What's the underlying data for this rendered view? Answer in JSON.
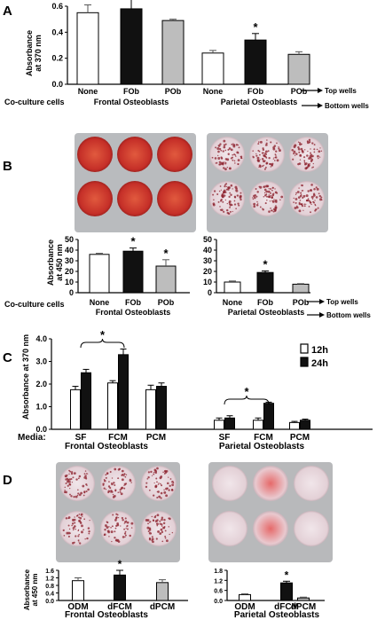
{
  "colors": {
    "white_bar": "#ffffff",
    "black_bar": "#111111",
    "gray_bar": "#bdbdbd",
    "plate_bg": "#b8b9bb",
    "stain_dense": "#c9302a",
    "stain_light": "#eadbe0",
    "dot": "#8b1d2a"
  },
  "panels": {
    "A": {
      "letter": "A",
      "ylabel_line1": "Absorbance",
      "ylabel_line2": "at 370 nm",
      "row_label": "Co-culture cells",
      "group1": "Frontal Osteoblasts",
      "group2": "Parietal Osteoblasts",
      "arrow_top": "Top wells",
      "arrow_bottom": "Bottom wells"
    },
    "B": {
      "letter": "B",
      "ylabel_line1": "Absorbance",
      "ylabel_line2": "at 450 nm",
      "row_label": "Co-culture cells",
      "group1": "Frontal Osteoblasts",
      "group2": "Parietal Osteoblasts",
      "arrow_top": "Top wells",
      "arrow_bottom": "Bottom wells"
    },
    "C": {
      "letter": "C",
      "ylabel": "Absorbance at 370 nm",
      "media_label": "Media:",
      "group1": "Frontal  Osteoblasts",
      "group2": "Parietal  Osteoblasts",
      "legend": [
        "12h",
        "24h"
      ]
    },
    "D": {
      "letter": "D",
      "ylabel_line1": "Absorbance",
      "ylabel_line2": "at 450 nm",
      "group1": "Frontal Osteoblasts",
      "group2": "Parietal Osteoblasts"
    }
  },
  "chart_data": [
    {
      "id": "A",
      "type": "bar",
      "ylim": [
        0,
        0.6
      ],
      "yticks": [
        0.0,
        0.2,
        0.4,
        0.6
      ],
      "categories": [
        "None",
        "FOb",
        "POb",
        "None",
        "FOb",
        "POb"
      ],
      "values": [
        0.55,
        0.58,
        0.49,
        0.24,
        0.34,
        0.23
      ],
      "errors": [
        0.06,
        0.1,
        0.01,
        0.02,
        0.05,
        0.02
      ],
      "fills": [
        "white",
        "black",
        "gray",
        "white",
        "black",
        "gray"
      ],
      "significant": [
        false,
        false,
        false,
        false,
        true,
        false
      ]
    },
    {
      "id": "B1",
      "type": "bar",
      "ylim": [
        0,
        50
      ],
      "yticks": [
        0,
        10,
        20,
        30,
        40,
        50
      ],
      "categories": [
        "None",
        "FOb",
        "POb"
      ],
      "values": [
        36,
        39,
        25
      ],
      "errors": [
        1,
        3,
        6
      ],
      "fills": [
        "white",
        "black",
        "gray"
      ],
      "significant": [
        false,
        true,
        true
      ]
    },
    {
      "id": "B2",
      "type": "bar",
      "ylim": [
        0,
        50
      ],
      "yticks": [
        0,
        10,
        20,
        30,
        40,
        50
      ],
      "categories": [
        "None",
        "FOb",
        "POb"
      ],
      "values": [
        10,
        19,
        8
      ],
      "errors": [
        1,
        1.5,
        0.5
      ],
      "fills": [
        "white",
        "black",
        "gray"
      ],
      "significant": [
        false,
        true,
        false
      ]
    },
    {
      "id": "C",
      "type": "bar",
      "ylim": [
        0,
        4.0
      ],
      "yticks": [
        0.0,
        1.0,
        2.0,
        3.0,
        4.0
      ],
      "categories": [
        "SF",
        "FCM",
        "PCM",
        "SF",
        "FCM",
        "PCM"
      ],
      "series": [
        {
          "name": "12h",
          "values": [
            1.75,
            2.05,
            1.75,
            0.4,
            0.4,
            0.3
          ],
          "errors": [
            0.15,
            0.1,
            0.2,
            0.1,
            0.1,
            0.05
          ]
        },
        {
          "name": "24h",
          "values": [
            2.5,
            3.3,
            1.9,
            0.5,
            1.15,
            0.4
          ],
          "errors": [
            0.15,
            0.25,
            0.15,
            0.1,
            0.05,
            0.05
          ]
        }
      ]
    },
    {
      "id": "D1",
      "type": "bar",
      "ylim": [
        0,
        1.6
      ],
      "yticks": [
        0.0,
        0.4,
        0.8,
        1.2,
        1.6
      ],
      "categories": [
        "ODM",
        "dFCM",
        "dPCM"
      ],
      "values": [
        1.05,
        1.35,
        0.95
      ],
      "errors": [
        0.15,
        0.25,
        0.15
      ],
      "fills": [
        "white",
        "black",
        "gray"
      ],
      "significant": [
        false,
        true,
        false
      ]
    },
    {
      "id": "D2",
      "type": "bar",
      "ylim": [
        0,
        1.8
      ],
      "yticks": [
        0.0,
        0.6,
        1.2,
        1.8
      ],
      "categories": [
        "ODM",
        "dFCM",
        "dPCM"
      ],
      "values": [
        0.35,
        1.05,
        0.15
      ],
      "errors": [
        0.05,
        0.1,
        0.05
      ],
      "fills": [
        "white",
        "black",
        "gray"
      ],
      "significant": [
        false,
        true,
        false
      ]
    }
  ]
}
